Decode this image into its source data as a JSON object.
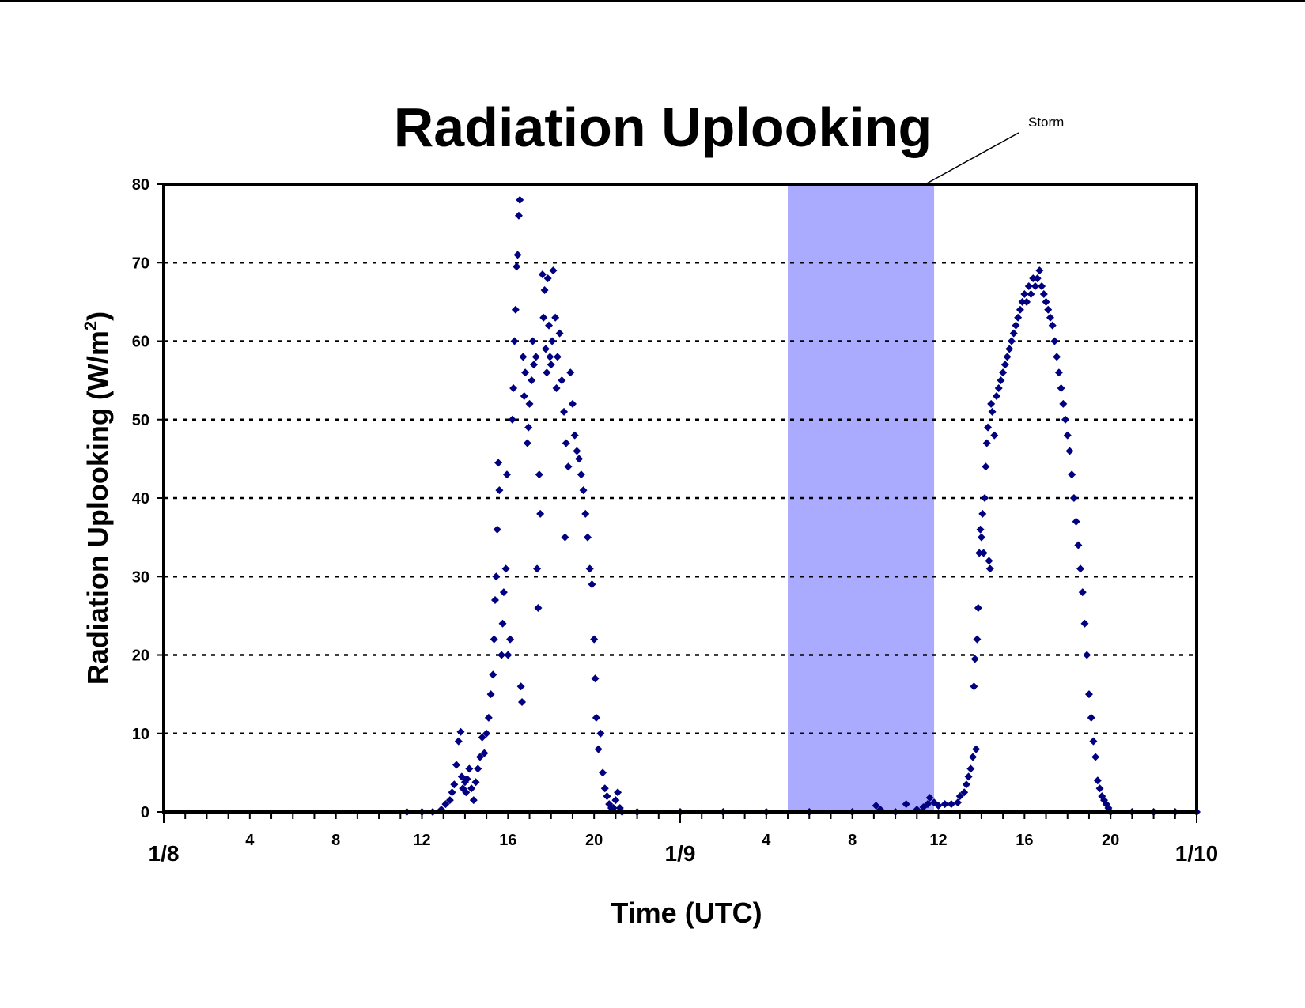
{
  "chart_data": {
    "type": "scatter",
    "title": "Radiation Uplooking",
    "xlabel": "Time (UTC)",
    "ylabel_main": "Radiation Uplooking (W/m",
    "ylabel_sup": "2",
    "ylabel_close": ")",
    "xlim": [
      0,
      48
    ],
    "ylim": [
      0,
      80
    ],
    "y_ticks": [
      0,
      10,
      20,
      30,
      40,
      50,
      60,
      70,
      80
    ],
    "y_gridlines": [
      10,
      20,
      30,
      40,
      50,
      60,
      70
    ],
    "grid": "horizontal dotted",
    "x_major_ticks": [
      {
        "x": 0,
        "label": "1/8"
      },
      {
        "x": 24,
        "label": "1/9"
      },
      {
        "x": 48,
        "label": "1/10"
      }
    ],
    "x_minor_labels": [
      {
        "x": 4,
        "label": "4"
      },
      {
        "x": 8,
        "label": "8"
      },
      {
        "x": 12,
        "label": "12"
      },
      {
        "x": 16,
        "label": "16"
      },
      {
        "x": 20,
        "label": "20"
      },
      {
        "x": 28,
        "label": "4"
      },
      {
        "x": 32,
        "label": "8"
      },
      {
        "x": 36,
        "label": "12"
      },
      {
        "x": 40,
        "label": "16"
      },
      {
        "x": 44,
        "label": "20"
      }
    ],
    "shaded_region": {
      "x_start": 29.0,
      "x_end": 35.8,
      "label": "Storm",
      "color": "#aaaaff"
    },
    "series": [
      {
        "color": "#000080",
        "marker": "diamond",
        "points": [
          [
            11.3,
            0
          ],
          [
            12.0,
            0
          ],
          [
            12.5,
            0
          ],
          [
            12.9,
            0.3
          ],
          [
            13.1,
            1
          ],
          [
            13.3,
            1.5
          ],
          [
            13.4,
            2.5
          ],
          [
            13.5,
            3.5
          ],
          [
            13.6,
            6
          ],
          [
            13.7,
            9
          ],
          [
            13.8,
            10.2
          ],
          [
            13.85,
            4.5
          ],
          [
            13.9,
            3
          ],
          [
            14.0,
            3.8
          ],
          [
            14.05,
            2.5
          ],
          [
            14.1,
            4.2
          ],
          [
            14.2,
            5.5
          ],
          [
            14.3,
            3
          ],
          [
            14.4,
            1.5
          ],
          [
            14.5,
            3.8
          ],
          [
            14.6,
            5.5
          ],
          [
            14.7,
            7
          ],
          [
            14.8,
            9.5
          ],
          [
            14.9,
            7.5
          ],
          [
            15.0,
            10
          ],
          [
            15.1,
            12
          ],
          [
            15.2,
            15
          ],
          [
            15.3,
            17.5
          ],
          [
            15.35,
            22
          ],
          [
            15.4,
            27
          ],
          [
            15.45,
            30
          ],
          [
            15.5,
            36
          ],
          [
            15.55,
            44.5
          ],
          [
            15.6,
            41
          ],
          [
            15.7,
            20
          ],
          [
            15.75,
            24
          ],
          [
            15.8,
            28
          ],
          [
            15.9,
            31
          ],
          [
            15.95,
            43
          ],
          [
            16.0,
            20
          ],
          [
            16.1,
            22
          ],
          [
            16.2,
            50
          ],
          [
            16.25,
            54
          ],
          [
            16.3,
            60
          ],
          [
            16.35,
            64
          ],
          [
            16.4,
            69.5
          ],
          [
            16.45,
            71
          ],
          [
            16.5,
            76
          ],
          [
            16.55,
            78
          ],
          [
            16.6,
            16
          ],
          [
            16.65,
            14
          ],
          [
            16.7,
            58
          ],
          [
            16.75,
            53
          ],
          [
            16.8,
            56
          ],
          [
            16.9,
            47
          ],
          [
            16.95,
            49
          ],
          [
            17.0,
            52
          ],
          [
            17.1,
            55
          ],
          [
            17.15,
            60
          ],
          [
            17.2,
            57
          ],
          [
            17.3,
            58
          ],
          [
            17.35,
            31
          ],
          [
            17.4,
            26
          ],
          [
            17.45,
            43
          ],
          [
            17.5,
            38
          ],
          [
            17.6,
            68.5
          ],
          [
            17.65,
            63
          ],
          [
            17.7,
            66.5
          ],
          [
            17.75,
            59
          ],
          [
            17.8,
            56
          ],
          [
            17.85,
            68
          ],
          [
            17.9,
            62
          ],
          [
            17.95,
            58
          ],
          [
            18.0,
            57
          ],
          [
            18.05,
            60
          ],
          [
            18.1,
            69
          ],
          [
            18.2,
            63
          ],
          [
            18.25,
            54
          ],
          [
            18.3,
            58
          ],
          [
            18.4,
            61
          ],
          [
            18.5,
            55
          ],
          [
            18.6,
            51
          ],
          [
            18.65,
            35
          ],
          [
            18.7,
            47
          ],
          [
            18.8,
            44
          ],
          [
            18.9,
            56
          ],
          [
            19.0,
            52
          ],
          [
            19.1,
            48
          ],
          [
            19.2,
            46
          ],
          [
            19.3,
            45
          ],
          [
            19.4,
            43
          ],
          [
            19.5,
            41
          ],
          [
            19.6,
            38
          ],
          [
            19.7,
            35
          ],
          [
            19.8,
            31
          ],
          [
            19.9,
            29
          ],
          [
            20.0,
            22
          ],
          [
            20.05,
            17
          ],
          [
            20.1,
            12
          ],
          [
            20.2,
            8
          ],
          [
            20.3,
            10
          ],
          [
            20.4,
            5
          ],
          [
            20.5,
            3
          ],
          [
            20.6,
            2
          ],
          [
            20.7,
            1
          ],
          [
            20.8,
            0.5
          ],
          [
            20.9,
            0.5
          ],
          [
            21.0,
            1.5
          ],
          [
            21.1,
            2.5
          ],
          [
            21.2,
            0.5
          ],
          [
            21.3,
            0
          ],
          [
            22.0,
            0
          ],
          [
            24.0,
            0
          ],
          [
            26.0,
            0
          ],
          [
            28.0,
            0
          ],
          [
            30.0,
            0
          ],
          [
            32.0,
            0
          ],
          [
            33.1,
            0.8
          ],
          [
            33.3,
            0.3
          ],
          [
            34.0,
            0
          ],
          [
            34.5,
            1
          ],
          [
            35.0,
            0.3
          ],
          [
            35.3,
            0.6
          ],
          [
            35.5,
            1
          ],
          [
            35.6,
            1.8
          ],
          [
            35.8,
            1.2
          ],
          [
            36.0,
            0.8
          ],
          [
            36.3,
            1
          ],
          [
            36.6,
            1
          ],
          [
            36.9,
            1.2
          ],
          [
            37.0,
            2
          ],
          [
            37.2,
            2.5
          ],
          [
            37.3,
            3.5
          ],
          [
            37.4,
            4.5
          ],
          [
            37.5,
            5.5
          ],
          [
            37.6,
            7
          ],
          [
            37.65,
            16
          ],
          [
            37.7,
            19.5
          ],
          [
            37.75,
            8
          ],
          [
            37.8,
            22
          ],
          [
            37.85,
            26
          ],
          [
            37.9,
            33
          ],
          [
            37.95,
            36
          ],
          [
            38.0,
            35
          ],
          [
            38.05,
            38
          ],
          [
            38.1,
            33
          ],
          [
            38.15,
            40
          ],
          [
            38.2,
            44
          ],
          [
            38.25,
            47
          ],
          [
            38.3,
            49
          ],
          [
            38.35,
            32
          ],
          [
            38.4,
            31
          ],
          [
            38.45,
            52
          ],
          [
            38.5,
            51
          ],
          [
            38.6,
            48
          ],
          [
            38.7,
            53
          ],
          [
            38.8,
            54
          ],
          [
            38.9,
            55
          ],
          [
            39.0,
            56
          ],
          [
            39.1,
            57
          ],
          [
            39.2,
            58
          ],
          [
            39.3,
            59
          ],
          [
            39.4,
            60
          ],
          [
            39.5,
            61
          ],
          [
            39.6,
            62
          ],
          [
            39.7,
            63
          ],
          [
            39.8,
            64
          ],
          [
            39.9,
            65
          ],
          [
            40.0,
            66
          ],
          [
            40.1,
            65
          ],
          [
            40.2,
            67
          ],
          [
            40.3,
            66
          ],
          [
            40.4,
            68
          ],
          [
            40.5,
            67
          ],
          [
            40.6,
            68
          ],
          [
            40.7,
            69
          ],
          [
            40.8,
            67
          ],
          [
            40.9,
            66
          ],
          [
            41.0,
            65
          ],
          [
            41.1,
            64
          ],
          [
            41.2,
            63
          ],
          [
            41.3,
            62
          ],
          [
            41.4,
            60
          ],
          [
            41.5,
            58
          ],
          [
            41.6,
            56
          ],
          [
            41.7,
            54
          ],
          [
            41.8,
            52
          ],
          [
            41.9,
            50
          ],
          [
            42.0,
            48
          ],
          [
            42.1,
            46
          ],
          [
            42.2,
            43
          ],
          [
            42.3,
            40
          ],
          [
            42.4,
            37
          ],
          [
            42.5,
            34
          ],
          [
            42.6,
            31
          ],
          [
            42.7,
            28
          ],
          [
            42.8,
            24
          ],
          [
            42.9,
            20
          ],
          [
            43.0,
            15
          ],
          [
            43.1,
            12
          ],
          [
            43.2,
            9
          ],
          [
            43.3,
            7
          ],
          [
            43.4,
            4
          ],
          [
            43.5,
            3
          ],
          [
            43.6,
            2
          ],
          [
            43.7,
            1.5
          ],
          [
            43.8,
            1
          ],
          [
            43.9,
            0.5
          ],
          [
            44.0,
            0
          ],
          [
            45.0,
            0
          ],
          [
            46.0,
            0
          ],
          [
            47.0,
            0
          ],
          [
            48.0,
            0
          ]
        ]
      }
    ]
  }
}
